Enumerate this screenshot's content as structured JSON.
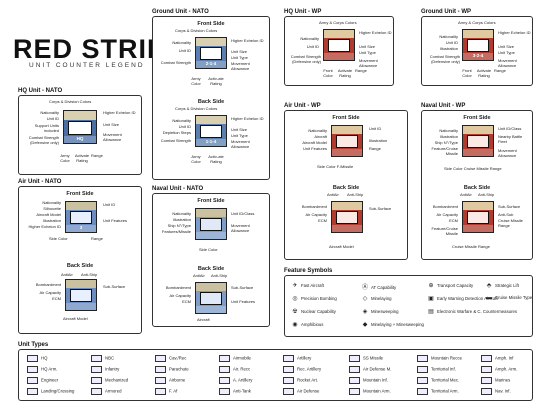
{
  "header": {
    "title": "RED STRIKE",
    "subtitle": "UNIT COUNTER LEGEND"
  },
  "sections": {
    "hq_nato": "HQ Unit - NATO",
    "air_nato": "Air Unit - NATO",
    "ground_nato": "Ground Unit - NATO",
    "naval_nato": "Naval Unit - NATO",
    "hq_wp": "HQ Unit - WP",
    "ground_wp": "Ground Unit - WP",
    "air_wp": "Air Unit - WP",
    "naval_wp": "Naval Unit - WP",
    "feature_symbols": "Feature Symbols",
    "unit_types": "Unit Types"
  },
  "sides": {
    "front": "Front Side",
    "back": "Back Side"
  },
  "counters": {
    "hq_nato": "HQ",
    "ground_front": "2-1-4",
    "ground_back": "1-1-4",
    "ground_wp": "3-2-4",
    "aircraft": "Aircraft Model",
    "cap": "3"
  },
  "labels": {
    "corps_div": "Corps & Division Colors",
    "nationality": "Nationality",
    "higher_echelon": "Higher Echelon ID",
    "unit_id": "Unit ID",
    "unit_size": "Unit Size",
    "unit_type": "Unit Type",
    "support_units": "Support Units included",
    "combat_strength": "Combat Strength (Defensive only)",
    "combat_strength_short": "Combat Strength",
    "movement": "Movement Allowance",
    "army_color": "Army Color",
    "army_color_short": "Army Color",
    "activate_rating": "Activate Rating",
    "activ_rating": "Activ-ate Rating",
    "range": "Range",
    "depletion_steps": "Depletion Steps",
    "front_color": "Front Color",
    "ground": "Ground",
    "army_corps": "Army & Corps Colors",
    "silhouette": "Silhouette",
    "aircraft_model": "Aircraft Model",
    "illustration": "Illustration",
    "unit_features": "Unit Features",
    "side_color": "Side Color",
    "higher_echelon_id": "Higher Echelon ID",
    "bombardment": "Bombardment",
    "air_capacity": "Air Capacity",
    "ecm": "ECM",
    "antiair": "AntiAir",
    "antiship": "Anti-Ship",
    "subsurface": "Sub-Surface",
    "aircraft": "Aircraft",
    "unit_class": "Unit ID/Class",
    "ship_n_type": "Ship N°/Type",
    "feature_missile": "Features/Missile",
    "side_color_missile": "Side Color  Cruise Missile Range",
    "cruise_missile_range": "Cruise Missile Range",
    "side_color_f": "Side Color  F./Missile",
    "unit_id_class_short": "Unit ID/Class",
    "nearby_battle_fleet": "Nearby Battle Fleet",
    "feature_cruise": "Feature/Cruise Missile",
    "antisub": "Anti-Sub"
  },
  "feature_symbols": [
    {
      "icon": "✈",
      "label": "Fast Aircraft"
    },
    {
      "icon": "◎",
      "label": "Precision Bombing"
    },
    {
      "icon": "☢",
      "label": "Nuclear Capability"
    },
    {
      "icon": "◉",
      "label": "Amphibious"
    },
    {
      "icon": "Ⓐ",
      "label": "AT Capability"
    },
    {
      "icon": "◇",
      "label": "Minelaying"
    },
    {
      "icon": "◈",
      "label": "Minesweeping"
    },
    {
      "icon": "◆",
      "label": "Minelaying + Minesweeping"
    },
    {
      "icon": "⊕",
      "label": "Transport Capacity"
    },
    {
      "icon": "▣",
      "label": "Early Warning Detection Aircraft"
    },
    {
      "icon": "▤",
      "label": "Electronic Warfare & C. Countermeasures"
    },
    {
      "icon": "⬘",
      "label": "Strategic Lift"
    },
    {
      "icon": "▬",
      "label": "Cruise Missile Type"
    }
  ],
  "unit_types": [
    "HQ",
    "HQ Arm.",
    "Engineer",
    "Landing/Crossing",
    "NBC",
    "Infantry",
    "Mechanized",
    "Armored",
    "Cav./Rec",
    "Parachute",
    "Airborne",
    "F. Af",
    "Airmobile",
    "Air. Recc",
    "A. Artillery",
    "Anti-Tank",
    "Artillery",
    "Rec. Artillery",
    "Rocket Art.",
    "Air Defense",
    "SS Missile",
    "Air Defense M.",
    "Mountain Inf.",
    "Mountain Arm.",
    "Mountain Recce",
    "Territorial Inf.",
    "Territorial Mec.",
    "Territorial Arm.",
    "Amph. Inf",
    "Amph. Arm.",
    "Marines",
    "Nav. Inf."
  ],
  "colors": {
    "nato_counter": "#4a6fa5",
    "wp_counter": "#b03a2e",
    "ground_counter": "#5a7fb0",
    "air_counter": "#6b8cc0",
    "naval_counter": "#7d9cc8"
  }
}
